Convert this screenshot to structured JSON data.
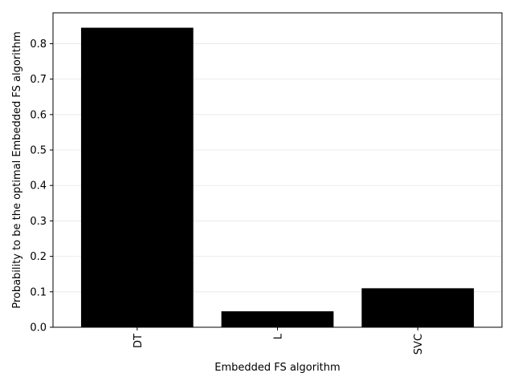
{
  "chart_data": {
    "type": "bar",
    "title": "",
    "xlabel": "Embedded FS algorithm",
    "ylabel": "Probability to be the optimal Embedded FS algorithm",
    "categories": [
      "DT",
      "L",
      "SVC"
    ],
    "values": [
      0.845,
      0.045,
      0.11
    ],
    "ylim": [
      0,
      0.887
    ],
    "yticks": [
      0.0,
      0.1,
      0.2,
      0.3,
      0.4,
      0.5,
      0.6,
      0.7,
      0.8
    ],
    "ytick_labels": [
      "0.0",
      "0.1",
      "0.2",
      "0.3",
      "0.4",
      "0.5",
      "0.6",
      "0.7",
      "0.8"
    ],
    "x_tick_rotation": "vertical",
    "grid": "horizontal",
    "legend": "none",
    "colors": {
      "bar": "#000000",
      "grid": "#e6e6e6",
      "axes": "#000000"
    }
  }
}
